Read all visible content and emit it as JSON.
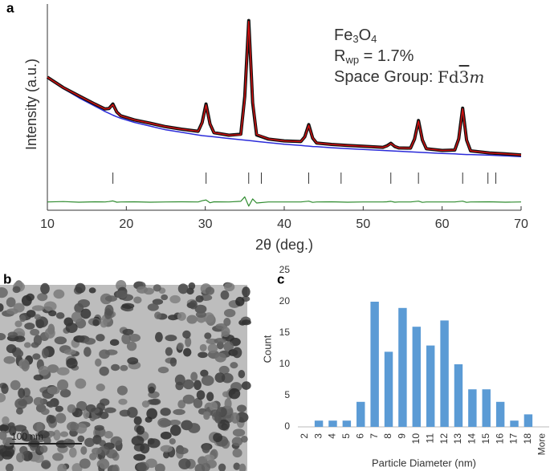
{
  "chart_data": [
    {
      "type": "line",
      "panel_label": "a",
      "xlabel": "2θ (deg.)",
      "ylabel": "Intensity (a.u.)",
      "annotations": {
        "formula": [
          "Fe",
          "3",
          "O",
          "4"
        ],
        "rwp": [
          "R",
          "wp",
          " = 1.7%"
        ],
        "space_group": [
          "Space Group: ",
          "Fd",
          "3",
          "m"
        ]
      },
      "xlim": [
        10,
        70
      ],
      "xticks": [
        10,
        20,
        30,
        40,
        50,
        60,
        70
      ],
      "ylim": [
        0,
        100
      ],
      "x": [
        10,
        12,
        14,
        16,
        17.3,
        17.8,
        18.3,
        18.8,
        19.3,
        21,
        23,
        25,
        27,
        29.1,
        29.6,
        30.1,
        30.6,
        31.1,
        33,
        34.5,
        35,
        35.5,
        36,
        36.5,
        38,
        40,
        42.1,
        42.6,
        43.1,
        43.6,
        44.1,
        46,
        48,
        50,
        52.5,
        53,
        53.5,
        54,
        54.5,
        56,
        56.5,
        57,
        57.5,
        58,
        60,
        61.6,
        62.1,
        62.6,
        63.1,
        63.6,
        66,
        68,
        70
      ],
      "series": [
        {
          "name": "background",
          "color": "#2b2bd9",
          "width": 1.5,
          "values": [
            64,
            59,
            54.5,
            50.5,
            47.9,
            47,
            46.1,
            45.3,
            44.6,
            42.6,
            40.8,
            39,
            37.8,
            36.5,
            36.2,
            36,
            35.8,
            35.6,
            34.8,
            34.2,
            34,
            33.8,
            33.6,
            33.4,
            32.8,
            32,
            31.4,
            31.2,
            31.1,
            30.9,
            30.8,
            30.3,
            29.9,
            29.5,
            29,
            28.9,
            28.8,
            28.7,
            28.6,
            28.3,
            28.2,
            28.1,
            28,
            27.9,
            27.5,
            27.3,
            27.2,
            27.1,
            27,
            27,
            26.7,
            26.4,
            26
          ]
        },
        {
          "name": "observed",
          "color": "#111111",
          "width": 4,
          "values": [
            64.5,
            59.5,
            55.5,
            51.5,
            49.1,
            49.3,
            51.5,
            47.6,
            45.8,
            43.8,
            42.2,
            40.5,
            39.3,
            38.3,
            42.5,
            51.5,
            41.8,
            37.6,
            36.4,
            36.9,
            55,
            92,
            52,
            36.5,
            34.5,
            33.6,
            33.3,
            35.6,
            41.5,
            35,
            32.6,
            31.9,
            31.4,
            31,
            30.5,
            31.2,
            32.5,
            30.9,
            30.2,
            30.1,
            34.5,
            43.5,
            34,
            29.8,
            29,
            29.2,
            34.6,
            49.5,
            34,
            28.8,
            27.8,
            27.3,
            26.8
          ]
        },
        {
          "name": "calculated",
          "color": "#d01010",
          "width": 1.5,
          "values": [
            64.5,
            59.5,
            55.5,
            51.5,
            49.1,
            49.3,
            51.2,
            47.6,
            45.8,
            43.8,
            42.2,
            40.5,
            39.3,
            38.3,
            42.3,
            51,
            41.9,
            37.6,
            36.4,
            36.6,
            54,
            91.5,
            53,
            36.8,
            34.5,
            33.6,
            33.3,
            35.5,
            41.2,
            35.1,
            32.6,
            31.9,
            31.4,
            31,
            30.5,
            31.1,
            32.3,
            31,
            30.2,
            30.1,
            34.4,
            43.2,
            34.2,
            29.8,
            29,
            29.2,
            34.5,
            49.2,
            34.1,
            28.8,
            27.8,
            27.3,
            26.8
          ]
        },
        {
          "name": "difference",
          "color": "#2e8b2e",
          "width": 1.2,
          "values": [
            4,
            4.2,
            3.9,
            4.1,
            4,
            4.2,
            4.5,
            3.9,
            4,
            4.1,
            3.9,
            4,
            4.1,
            4,
            4.6,
            5,
            3.6,
            4.1,
            4,
            4.3,
            6.5,
            2,
            5.5,
            3.5,
            4,
            4,
            4,
            4.2,
            4.4,
            3.8,
            4,
            4.1,
            3.9,
            4,
            4,
            4.1,
            4.3,
            3.9,
            4,
            4,
            4.2,
            4.4,
            3.8,
            4,
            4,
            4,
            4.2,
            4.4,
            3.8,
            4,
            4.1,
            3.9,
            4
          ]
        }
      ],
      "reflections": [
        18.3,
        30.1,
        35.5,
        37.1,
        43.1,
        47.2,
        53.5,
        57.0,
        62.6,
        65.8,
        66.8
      ]
    },
    {
      "type": "bar",
      "panel_label": "c",
      "xlabel": "Particle Diameter (nm)",
      "ylabel": "Count",
      "categories": [
        "2",
        "3",
        "4",
        "5",
        "6",
        "7",
        "8",
        "9",
        "10",
        "11",
        "12",
        "13",
        "14",
        "15",
        "16",
        "17",
        "18",
        "More"
      ],
      "values": [
        0,
        1,
        1,
        1,
        4,
        20,
        12,
        19,
        16,
        13,
        17,
        10,
        6,
        6,
        4,
        1,
        2,
        0
      ],
      "color": "#5b9bd5",
      "ylim": [
        0,
        25
      ],
      "yticks": [
        0,
        5,
        10,
        15,
        20,
        25
      ]
    }
  ],
  "image_panel": {
    "panel_label": "b",
    "scale_bar": "100 nm"
  }
}
